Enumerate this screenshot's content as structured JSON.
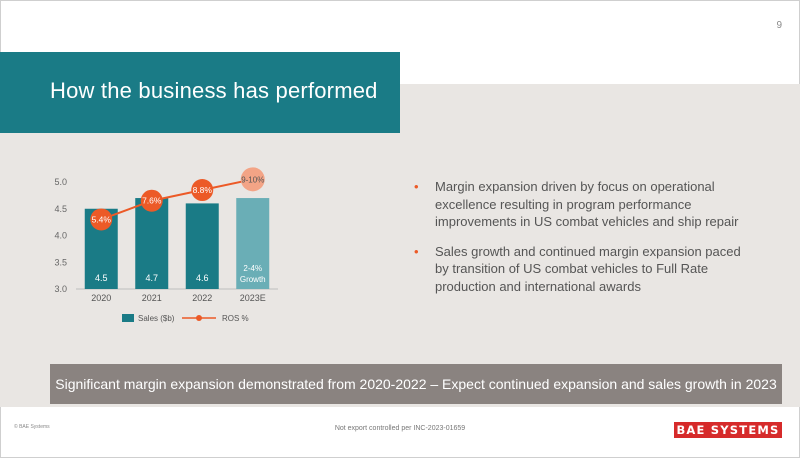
{
  "slide": {
    "page_number": "9",
    "title": "How the business has performed",
    "bullets": [
      "Margin expansion driven by focus on operational excellence resulting in program performance improvements in US combat vehicles and ship repair",
      "Sales growth and continued margin expansion paced by transition of US combat vehicles to Full Rate production and international awards"
    ],
    "banner": "Significant margin expansion demonstrated from 2020-2022 – Expect continued expansion and sales growth in 2023",
    "footer_left": "© BAE Systems",
    "footer_center": "Not export controlled per INC-2023-01659",
    "logo_text": "BAE SYSTEMS",
    "bullet_glyph": "•"
  },
  "colors": {
    "teal": "#1a7b86",
    "estimate_bar": "#6aaeb6",
    "accent_orange": "#ec5a27",
    "estimate_marker": "#f3a486",
    "banner": "#8a8380",
    "background_band": "#e9e6e3",
    "logo_red": "#d62a2a"
  },
  "chart_data": {
    "type": "bar",
    "categories": [
      "2020",
      "2021",
      "2022",
      "2023E"
    ],
    "series": [
      {
        "name": "Sales ($b)",
        "type": "bar",
        "values": [
          4.5,
          4.7,
          4.6,
          4.7
        ],
        "labels": [
          "4.5",
          "4.7",
          "4.6",
          "2-4%\nGrowth"
        ]
      },
      {
        "name": "ROS %",
        "type": "line",
        "values": [
          5.4,
          7.6,
          8.8,
          9.5
        ],
        "labels": [
          "5.4%",
          "7.6%",
          "8.8%",
          "9-10%"
        ]
      }
    ],
    "y_axis": {
      "min": 3.0,
      "max": 5.0,
      "ticks": [
        "3.0",
        "3.5",
        "4.0",
        "4.5",
        "5.0"
      ]
    },
    "line_positions_in_y_units": [
      4.3,
      4.65,
      4.85,
      5.05
    ],
    "grid": false,
    "legend": "bottom"
  }
}
